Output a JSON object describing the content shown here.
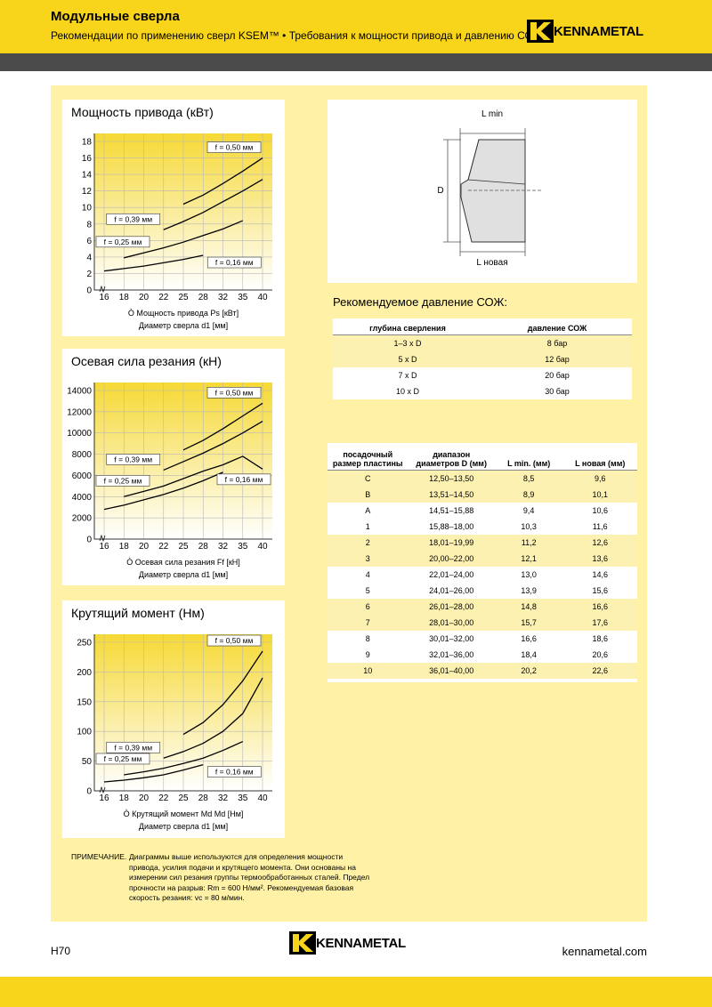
{
  "header": {
    "title": "Модульные сверла",
    "subtitle": "Рекомендации по применению сверл KSEM™ • Требования к мощности привода и давлению СОЖ",
    "logo": "KENNAMETAL"
  },
  "chart_data": [
    {
      "type": "line",
      "title": "Мощность привода (кВт)",
      "caption": "Ò Мощность привода Ps [кВт]",
      "xlabel": "Диаметр сверла d1 [мм]",
      "categories": [
        "16",
        "18",
        "20",
        "22",
        "25",
        "28",
        "32",
        "35",
        "40"
      ],
      "ylim": [
        0,
        18
      ],
      "yticks": [
        0,
        2,
        4,
        6,
        8,
        10,
        12,
        14,
        16,
        18
      ],
      "grid": true,
      "series": [
        {
          "name": "f = 0,50 мм",
          "color": "#000000",
          "values": [
            null,
            null,
            null,
            null,
            10.4,
            11.5,
            12.9,
            14.4,
            16.0
          ]
        },
        {
          "name": "f = 0,39 мм",
          "color": "#000000",
          "values": [
            null,
            null,
            null,
            7.3,
            8.3,
            9.4,
            10.7,
            12.0,
            13.4
          ]
        },
        {
          "name": "f = 0,25 мм",
          "color": "#000000",
          "values": [
            null,
            3.9,
            4.5,
            5.1,
            5.8,
            6.6,
            7.4,
            8.4,
            null
          ]
        },
        {
          "name": "f = 0,16 мм",
          "color": "#000000",
          "values": [
            2.3,
            2.6,
            2.9,
            3.3,
            3.7,
            4.2,
            null,
            null,
            null
          ]
        }
      ]
    },
    {
      "type": "line",
      "title": "Осевая сила резания (кН)",
      "caption": "Ò Осевая сила резания Ff [кН]",
      "xlabel": "Диаметр сверла d1 [мм]",
      "categories": [
        "16",
        "18",
        "20",
        "22",
        "25",
        "28",
        "32",
        "35",
        "40"
      ],
      "ylim": [
        0,
        14000
      ],
      "yticks": [
        0,
        2000,
        4000,
        6000,
        8000,
        10000,
        12000,
        14000
      ],
      "grid": true,
      "series": [
        {
          "name": "f = 0,50 мм",
          "color": "#000000",
          "values": [
            null,
            null,
            null,
            null,
            8400,
            9300,
            10400,
            11600,
            12800
          ]
        },
        {
          "name": "f = 0,39 мм",
          "color": "#000000",
          "values": [
            null,
            null,
            null,
            6500,
            7300,
            8100,
            9000,
            10000,
            11100
          ]
        },
        {
          "name": "f = 0,25 мм",
          "color": "#000000",
          "values": [
            null,
            4000,
            4500,
            5000,
            5700,
            6400,
            7000,
            7800,
            6600
          ]
        },
        {
          "name": "f = 0,16 мм",
          "color": "#000000",
          "values": [
            2800,
            3200,
            3700,
            4200,
            4800,
            5500,
            6300,
            null,
            null
          ]
        }
      ]
    },
    {
      "type": "line",
      "title": "Крутящий момент (Нм)",
      "caption": "Ò Крутящий момент Md Md [Нм]",
      "xlabel": "Диаметр сверла d1 [мм]",
      "categories": [
        "16",
        "18",
        "20",
        "22",
        "25",
        "28",
        "32",
        "35",
        "40"
      ],
      "ylim": [
        0,
        250
      ],
      "yticks": [
        0,
        50,
        100,
        150,
        200,
        250
      ],
      "grid": true,
      "series": [
        {
          "name": "f = 0,50 мм",
          "color": "#000000",
          "values": [
            null,
            null,
            null,
            null,
            95,
            115,
            145,
            185,
            235
          ]
        },
        {
          "name": "f = 0,39 мм",
          "color": "#000000",
          "values": [
            null,
            null,
            null,
            55,
            66,
            80,
            100,
            130,
            190
          ]
        },
        {
          "name": "f = 0,25 мм",
          "color": "#000000",
          "values": [
            null,
            27,
            32,
            38,
            46,
            55,
            68,
            83,
            null
          ]
        },
        {
          "name": "f = 0,16 мм",
          "color": "#000000",
          "values": [
            15,
            18,
            22,
            27,
            35,
            44,
            null,
            null,
            null
          ]
        }
      ]
    }
  ],
  "diagram": {
    "l_min": "L min",
    "d": "D",
    "l_new": "L новая"
  },
  "coolant": {
    "title": "Рекомендуемое давление СОЖ:",
    "header": [
      "глубина сверления",
      "давление СОЖ"
    ],
    "rows": [
      [
        "1–3 x D",
        "8 бар"
      ],
      [
        "5 x D",
        "12 бар"
      ],
      [
        "7 x D",
        "20 бар"
      ],
      [
        "10 x D",
        "30 бар"
      ]
    ]
  },
  "inserts": {
    "header": [
      "посадочный размер пластины",
      "диапазон диаметров D (мм)",
      "L min. (мм)",
      "L новая (мм)"
    ],
    "rows": [
      [
        "C",
        "12,50–13,50",
        "8,5",
        "9,6"
      ],
      [
        "B",
        "13,51–14,50",
        "8,9",
        "10,1"
      ],
      [
        "A",
        "14,51–15,88",
        "9,4",
        "10,6"
      ],
      [
        "1",
        "15,88–18,00",
        "10,3",
        "11,6"
      ],
      [
        "2",
        "18,01–19,99",
        "11,2",
        "12,6"
      ],
      [
        "3",
        "20,00–22,00",
        "12,1",
        "13,6"
      ],
      [
        "4",
        "22,01–24,00",
        "13,0",
        "14,6"
      ],
      [
        "5",
        "24,01–26,00",
        "13,9",
        "15,6"
      ],
      [
        "6",
        "26,01–28,00",
        "14,8",
        "16,6"
      ],
      [
        "7",
        "28,01–30,00",
        "15,7",
        "17,6"
      ],
      [
        "8",
        "30,01–32,00",
        "16,6",
        "18,6"
      ],
      [
        "9",
        "32,01–36,00",
        "18,4",
        "20,6"
      ],
      [
        "10",
        "36,01–40,00",
        "20,2",
        "22,6"
      ]
    ]
  },
  "note": {
    "label": "ПРИМЕЧАНИЕ.",
    "text": "Диаграммы выше используются для определения мощности привода, усилия подачи и крутящего момента. Они основаны на измерении сил резания группы термообработанных сталей. Предел прочности на разрыв: Rm = 600 Н/мм². Рекомендуемая базовая скорость резания: vc = 80 м/мин."
  },
  "footer": {
    "page": "H70",
    "logo": "KENNAMETAL",
    "url": "kennametal.com"
  }
}
